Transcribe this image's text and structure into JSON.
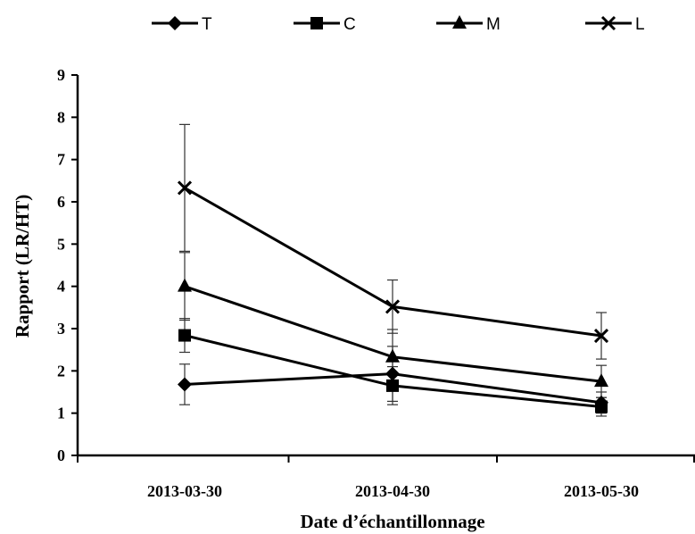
{
  "chart_data": {
    "type": "line",
    "title": "",
    "xlabel": "Date d’échantillonnage",
    "ylabel": "Rapport (LR/HT)",
    "categories": [
      "2013-03-30",
      "2013-04-30",
      "2013-05-30"
    ],
    "ylim": [
      0,
      9
    ],
    "yticks": [
      0,
      1,
      2,
      3,
      4,
      5,
      6,
      7,
      8,
      9
    ],
    "grid": false,
    "legend_position": "top",
    "series": [
      {
        "name": "T",
        "marker": "diamond",
        "values": [
          1.68,
          1.93,
          1.25
        ],
        "errors": [
          0.48,
          0.65,
          0.25
        ]
      },
      {
        "name": "C",
        "marker": "square",
        "values": [
          2.84,
          1.65,
          1.15
        ],
        "errors": [
          0.4,
          0.45,
          0.22
        ]
      },
      {
        "name": "M",
        "marker": "triangle",
        "values": [
          4.0,
          2.33,
          1.75
        ],
        "errors": [
          0.8,
          0.65,
          0.38
        ]
      },
      {
        "name": "L",
        "marker": "cross",
        "values": [
          6.33,
          3.52,
          2.83
        ],
        "errors": [
          1.5,
          0.63,
          0.55
        ]
      }
    ]
  }
}
